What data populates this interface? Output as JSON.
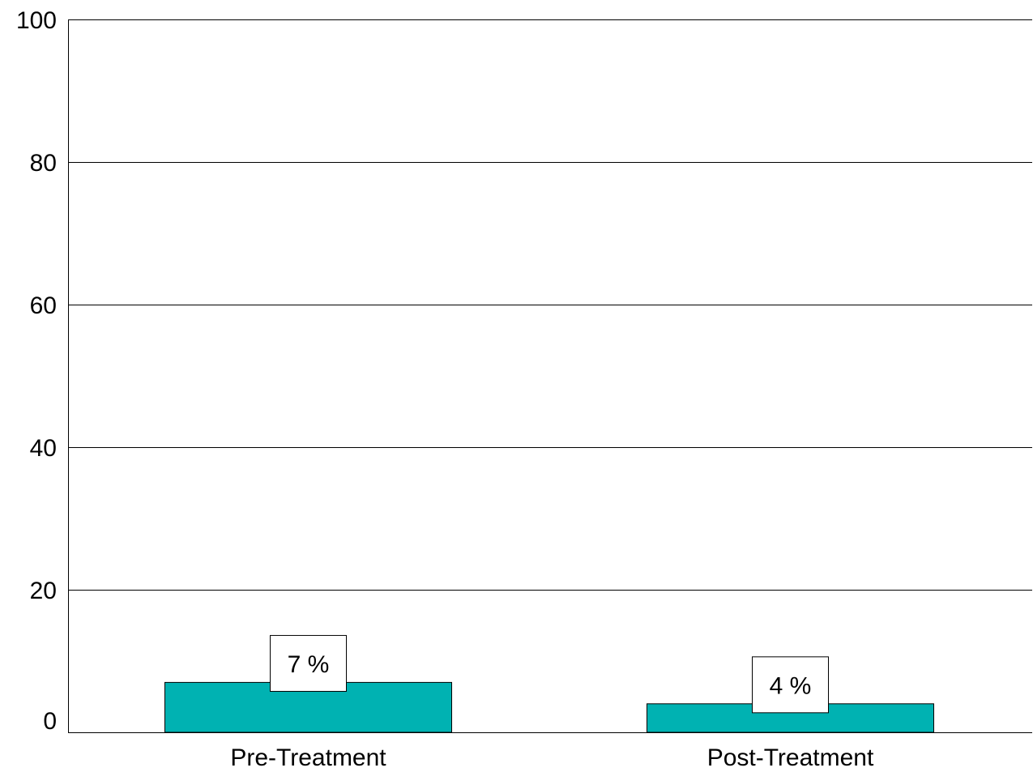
{
  "chart_data": {
    "type": "bar",
    "categories": [
      "Pre-Treatment",
      "Post-Treatment"
    ],
    "values": [
      7,
      4
    ],
    "data_labels": [
      "7 %",
      "4 %"
    ],
    "title": "",
    "xlabel": "",
    "ylabel": "",
    "ylim": [
      0,
      100
    ],
    "yticks": [
      0,
      20,
      40,
      60,
      80,
      100
    ],
    "ytick_labels": [
      "0",
      "20",
      "40",
      "60",
      "80",
      "100"
    ],
    "grid": true,
    "legend": "none",
    "colors": {
      "bar": "#00B2B2",
      "grid": "#000000",
      "label_box": "#ffffff"
    }
  }
}
